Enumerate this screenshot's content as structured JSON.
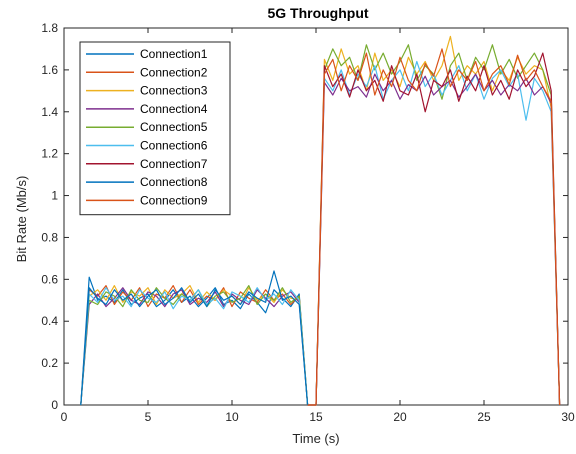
{
  "chart_data": {
    "type": "line",
    "title": "5G Throughput",
    "xlabel": "Time (s)",
    "ylabel": "Bit Rate (Mb/s)",
    "xlim": [
      0,
      30
    ],
    "ylim": [
      0,
      1.8
    ],
    "xticks": [
      "0",
      "5",
      "10",
      "15",
      "20",
      "25",
      "30"
    ],
    "yticks": [
      "0",
      "0.2",
      "0.4",
      "0.6",
      "0.8",
      "1",
      "1.2",
      "1.4",
      "1.6",
      "1.8"
    ],
    "grid": false,
    "legend_position": "top-left",
    "series": [
      {
        "name": "Connection1",
        "color": "#0072BD",
        "phase": "early",
        "x": [
          1.0,
          1.5,
          2.0,
          2.5,
          3.0,
          3.5,
          4.0,
          4.5,
          5.0,
          5.5,
          6.0,
          6.5,
          7.0,
          7.5,
          8.0,
          8.5,
          9.0,
          9.5,
          10.0,
          10.5,
          11.0,
          11.5,
          12.0,
          12.5,
          13.0,
          13.5,
          14.0,
          14.5
        ],
        "y": [
          0,
          0.61,
          0.5,
          0.52,
          0.49,
          0.55,
          0.48,
          0.51,
          0.53,
          0.47,
          0.5,
          0.55,
          0.49,
          0.52,
          0.47,
          0.51,
          0.56,
          0.48,
          0.5,
          0.46,
          0.53,
          0.49,
          0.44,
          0.55,
          0.51,
          0.47,
          0.53,
          0
        ]
      },
      {
        "name": "Connection2",
        "color": "#D95319",
        "phase": "early",
        "x": [
          1.0,
          1.5,
          2.0,
          2.5,
          3.0,
          3.5,
          4.0,
          4.5,
          5.0,
          5.5,
          6.0,
          6.5,
          7.0,
          7.5,
          8.0,
          8.5,
          9.0,
          9.5,
          10.0,
          10.5,
          11.0,
          11.5,
          12.0,
          12.5,
          13.0,
          13.5,
          14.0,
          14.5
        ],
        "y": [
          0,
          0.55,
          0.52,
          0.57,
          0.48,
          0.54,
          0.5,
          0.56,
          0.47,
          0.53,
          0.51,
          0.57,
          0.49,
          0.55,
          0.48,
          0.52,
          0.5,
          0.56,
          0.47,
          0.54,
          0.51,
          0.49,
          0.55,
          0.5,
          0.53,
          0.48,
          0.52,
          0
        ]
      },
      {
        "name": "Connection3",
        "color": "#EDB120",
        "phase": "early",
        "x": [
          1.0,
          1.5,
          2.0,
          2.5,
          3.0,
          3.5,
          4.0,
          4.5,
          5.0,
          5.5,
          6.0,
          6.5,
          7.0,
          7.5,
          8.0,
          8.5,
          9.0,
          9.5,
          10.0,
          10.5,
          11.0,
          11.5,
          12.0,
          12.5,
          13.0,
          13.5,
          14.0,
          14.5
        ],
        "y": [
          0,
          0.52,
          0.55,
          0.5,
          0.57,
          0.49,
          0.54,
          0.52,
          0.56,
          0.48,
          0.55,
          0.51,
          0.53,
          0.57,
          0.49,
          0.54,
          0.5,
          0.55,
          0.52,
          0.48,
          0.56,
          0.5,
          0.53,
          0.49,
          0.55,
          0.51,
          0.5,
          0
        ]
      },
      {
        "name": "Connection4",
        "color": "#7E2F8E",
        "phase": "early",
        "x": [
          1.0,
          1.5,
          2.0,
          2.5,
          3.0,
          3.5,
          4.0,
          4.5,
          5.0,
          5.5,
          6.0,
          6.5,
          7.0,
          7.5,
          8.0,
          8.5,
          9.0,
          9.5,
          10.0,
          10.5,
          11.0,
          11.5,
          12.0,
          12.5,
          13.0,
          13.5,
          14.0,
          14.5
        ],
        "y": [
          0,
          0.48,
          0.53,
          0.47,
          0.51,
          0.56,
          0.5,
          0.48,
          0.54,
          0.52,
          0.47,
          0.53,
          0.55,
          0.48,
          0.51,
          0.49,
          0.54,
          0.47,
          0.53,
          0.5,
          0.48,
          0.55,
          0.51,
          0.47,
          0.52,
          0.54,
          0.49,
          0
        ]
      },
      {
        "name": "Connection5",
        "color": "#77AC30",
        "phase": "early",
        "x": [
          1.0,
          1.5,
          2.0,
          2.5,
          3.0,
          3.5,
          4.0,
          4.5,
          5.0,
          5.5,
          6.0,
          6.5,
          7.0,
          7.5,
          8.0,
          8.5,
          9.0,
          9.5,
          10.0,
          10.5,
          11.0,
          11.5,
          12.0,
          12.5,
          13.0,
          13.5,
          14.0,
          14.5
        ],
        "y": [
          0,
          0.5,
          0.48,
          0.54,
          0.52,
          0.47,
          0.55,
          0.5,
          0.49,
          0.56,
          0.51,
          0.48,
          0.53,
          0.5,
          0.55,
          0.47,
          0.52,
          0.54,
          0.49,
          0.51,
          0.57,
          0.48,
          0.53,
          0.5,
          0.56,
          0.49,
          0.52,
          0
        ]
      },
      {
        "name": "Connection6",
        "color": "#4DBEEE",
        "phase": "early",
        "x": [
          1.0,
          1.5,
          2.0,
          2.5,
          3.0,
          3.5,
          4.0,
          4.5,
          5.0,
          5.5,
          6.0,
          6.5,
          7.0,
          7.5,
          8.0,
          8.5,
          9.0,
          9.5,
          10.0,
          10.5,
          11.0,
          11.5,
          12.0,
          12.5,
          13.0,
          13.5,
          14.0,
          14.5
        ],
        "y": [
          0,
          0.53,
          0.49,
          0.56,
          0.5,
          0.52,
          0.47,
          0.55,
          0.51,
          0.49,
          0.54,
          0.46,
          0.52,
          0.5,
          0.55,
          0.48,
          0.51,
          0.46,
          0.54,
          0.52,
          0.49,
          0.56,
          0.5,
          0.53,
          0.48,
          0.55,
          0.5,
          0
        ]
      },
      {
        "name": "Connection7",
        "color": "#A2142F",
        "phase": "late",
        "x": [
          14.5,
          15.0,
          15.5,
          16.0,
          16.5,
          17.0,
          17.5,
          18.0,
          18.5,
          19.0,
          19.5,
          20.0,
          20.5,
          21.0,
          21.5,
          22.0,
          22.5,
          23.0,
          23.5,
          24.0,
          24.5,
          25.0,
          25.5,
          26.0,
          26.5,
          27.0,
          27.5,
          28.0,
          28.5,
          29.0,
          29.5
        ],
        "y": [
          0,
          0,
          1.62,
          1.52,
          1.58,
          1.47,
          1.6,
          1.5,
          1.55,
          1.45,
          1.62,
          1.5,
          1.48,
          1.58,
          1.4,
          1.55,
          1.52,
          1.6,
          1.45,
          1.57,
          1.5,
          1.62,
          1.48,
          1.55,
          1.46,
          1.6,
          1.52,
          1.57,
          1.68,
          1.5,
          0
        ]
      },
      {
        "name": "Connection8",
        "color": "#0072BD",
        "phase": "early",
        "x": [
          1.0,
          1.5,
          2.0,
          2.5,
          3.0,
          3.5,
          4.0,
          4.5,
          5.0,
          5.5,
          6.0,
          6.5,
          7.0,
          7.5,
          8.0,
          8.5,
          9.0,
          9.5,
          10.0,
          10.5,
          11.0,
          11.5,
          12.0,
          12.5,
          13.0,
          13.5,
          14.0,
          14.5
        ],
        "y": [
          0,
          0.56,
          0.51,
          0.48,
          0.55,
          0.5,
          0.53,
          0.47,
          0.52,
          0.55,
          0.48,
          0.51,
          0.56,
          0.49,
          0.53,
          0.47,
          0.55,
          0.5,
          0.52,
          0.48,
          0.54,
          0.51,
          0.49,
          0.64,
          0.5,
          0.52,
          0.48,
          0
        ]
      },
      {
        "name": "Connection9",
        "color": "#D95319",
        "phase": "late",
        "x": [
          14.5,
          15.0,
          15.5,
          16.0,
          16.5,
          17.0,
          17.5,
          18.0,
          18.5,
          19.0,
          19.5,
          20.0,
          20.5,
          21.0,
          21.5,
          22.0,
          22.5,
          23.0,
          23.5,
          24.0,
          24.5,
          25.0,
          25.5,
          26.0,
          26.5,
          27.0,
          27.5,
          28.0,
          28.5,
          29.0,
          29.5
        ],
        "y": [
          0,
          0,
          1.58,
          1.65,
          1.5,
          1.62,
          1.55,
          1.68,
          1.48,
          1.6,
          1.52,
          1.66,
          1.55,
          1.5,
          1.63,
          1.57,
          1.7,
          1.52,
          1.6,
          1.55,
          1.64,
          1.5,
          1.58,
          1.62,
          1.53,
          1.67,
          1.55,
          1.6,
          1.52,
          1.45,
          0
        ]
      }
    ],
    "extra_late": [
      {
        "color": "#EDB120",
        "y": [
          0,
          0,
          1.65,
          1.55,
          1.7,
          1.58,
          1.62,
          1.5,
          1.68,
          1.55,
          1.6,
          1.52,
          1.66,
          1.58,
          1.64,
          1.55,
          1.62,
          1.76,
          1.55,
          1.62,
          1.58,
          1.64,
          1.5,
          1.6,
          1.55,
          1.66,
          1.58,
          1.62,
          1.6,
          1.42,
          0
        ]
      },
      {
        "color": "#77AC30",
        "y": [
          0,
          0,
          1.6,
          1.7,
          1.62,
          1.66,
          1.55,
          1.72,
          1.6,
          1.68,
          1.58,
          1.64,
          1.72,
          1.55,
          1.62,
          1.58,
          1.46,
          1.62,
          1.68,
          1.55,
          1.66,
          1.6,
          1.72,
          1.58,
          1.65,
          1.56,
          1.62,
          1.68,
          1.6,
          1.48,
          0
        ]
      },
      {
        "color": "#4DBEEE",
        "y": [
          0,
          0,
          1.56,
          1.5,
          1.6,
          1.48,
          1.58,
          1.52,
          1.62,
          1.46,
          1.55,
          1.6,
          1.5,
          1.64,
          1.52,
          1.58,
          1.48,
          1.55,
          1.62,
          1.5,
          1.58,
          1.46,
          1.56,
          1.6,
          1.52,
          1.58,
          1.36,
          1.56,
          1.5,
          1.4,
          0
        ]
      },
      {
        "color": "#7E2F8E",
        "y": [
          0,
          0,
          1.54,
          1.48,
          1.56,
          1.5,
          1.52,
          1.47,
          1.58,
          1.5,
          1.55,
          1.46,
          1.53,
          1.5,
          1.57,
          1.48,
          1.52,
          1.55,
          1.47,
          1.52,
          1.58,
          1.5,
          1.55,
          1.48,
          1.53,
          1.5,
          1.56,
          1.48,
          1.52,
          1.44,
          0
        ]
      }
    ]
  }
}
